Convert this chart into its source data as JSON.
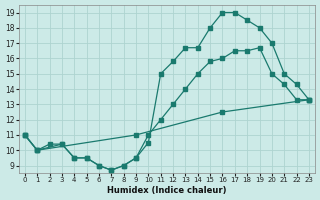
{
  "line1_x": [
    0,
    1,
    2,
    3,
    4,
    5,
    6,
    7,
    8,
    9,
    10,
    11,
    12,
    13,
    14,
    15,
    16,
    17,
    18,
    19,
    20,
    21,
    22,
    23
  ],
  "line1_y": [
    11.0,
    10.0,
    10.4,
    10.4,
    9.5,
    9.5,
    9.0,
    8.7,
    9.0,
    9.5,
    10.5,
    15.0,
    15.8,
    16.7,
    16.7,
    18.0,
    19.0,
    19.0,
    18.5,
    18.0,
    17.0,
    15.0,
    14.3,
    13.3
  ],
  "line2_x": [
    0,
    1,
    3,
    4,
    5,
    6,
    7,
    8,
    9,
    10,
    11,
    12,
    13,
    14,
    15,
    16,
    17,
    18,
    19,
    20,
    21,
    22,
    23
  ],
  "line2_y": [
    11.0,
    10.0,
    10.4,
    9.5,
    9.5,
    9.0,
    8.7,
    9.0,
    9.5,
    11.0,
    12.0,
    13.0,
    14.0,
    15.0,
    15.8,
    16.0,
    16.5,
    16.5,
    16.7,
    15.0,
    14.3,
    13.3,
    13.3
  ],
  "line3_x": [
    0,
    1,
    9,
    16,
    23
  ],
  "line3_y": [
    11.0,
    10.0,
    11.0,
    12.5,
    13.3
  ],
  "color": "#1a7a6e",
  "bg_color": "#cceae7",
  "grid_color": "#aed4d0",
  "xlabel": "Humidex (Indice chaleur)",
  "xlim": [
    -0.5,
    23.5
  ],
  "ylim": [
    8.5,
    19.5
  ],
  "yticks": [
    9,
    10,
    11,
    12,
    13,
    14,
    15,
    16,
    17,
    18,
    19
  ],
  "xticks": [
    0,
    1,
    2,
    3,
    4,
    5,
    6,
    7,
    8,
    9,
    10,
    11,
    12,
    13,
    14,
    15,
    16,
    17,
    18,
    19,
    20,
    21,
    22,
    23
  ]
}
